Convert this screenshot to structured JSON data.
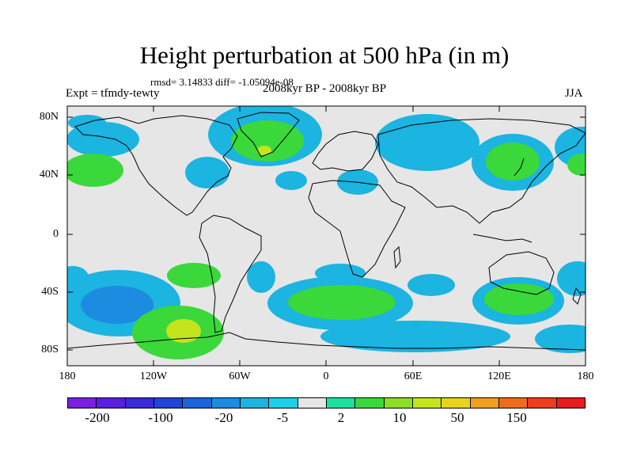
{
  "title": "Height perturbation at 500 hPa (in m)",
  "stats": "rmsd= 3.14833 diff= -1.05094e-08",
  "left_label": "Expt = tfmdy-tewty",
  "subtitle": "2008kyr BP - 2008kyr BP",
  "season": "JJA",
  "lat_ticks": [
    "80N",
    "40N",
    "0",
    "40S",
    "80S"
  ],
  "lon_ticks": [
    "180",
    "120W",
    "60W",
    "0",
    "60E",
    "120E",
    "180"
  ],
  "colorbar": {
    "colors": [
      "#7c1fe0",
      "#5a1ee0",
      "#3a2ad8",
      "#2044d8",
      "#1a64dc",
      "#1c8ce0",
      "#1cb4e0",
      "#1cd0e8",
      "#e6e6e6",
      "#1ce0a0",
      "#3ad83a",
      "#8ce024",
      "#c4e41c",
      "#e8d41c",
      "#f0a01c",
      "#f06c1c",
      "#f03c1c",
      "#e81c1c"
    ],
    "labels": [
      "-200",
      "-100",
      "-20",
      "-5",
      "2",
      "10",
      "50",
      "150"
    ]
  },
  "chart_data": {
    "type": "heatmap",
    "title": "Height perturbation at 500 hPa (in m)",
    "xlabel": "",
    "ylabel": "",
    "x_ticks": [
      "180",
      "120W",
      "60W",
      "0",
      "60E",
      "120E",
      "180"
    ],
    "y_ticks": [
      "80N",
      "40N",
      "0",
      "40S",
      "80S"
    ],
    "xlim": [
      -180,
      180
    ],
    "ylim": [
      -90,
      90
    ],
    "levels": [
      "-200",
      "-100",
      "-20",
      "-5",
      "2",
      "10",
      "50",
      "150"
    ],
    "regions": [
      {
        "lon": -30,
        "lat": 62,
        "value": 10
      },
      {
        "lon": -35,
        "lat": 60,
        "value": 50
      },
      {
        "lon": -172,
        "lat": 42,
        "value": 10
      },
      {
        "lon": -70,
        "lat": 40,
        "value": -5
      },
      {
        "lon": -145,
        "lat": 65,
        "value": -5
      },
      {
        "lon": 60,
        "lat": 58,
        "value": -5
      },
      {
        "lon": 20,
        "lat": 40,
        "value": -5
      },
      {
        "lon": 125,
        "lat": 55,
        "value": 10
      },
      {
        "lon": 168,
        "lat": 62,
        "value": -5
      },
      {
        "lon": -148,
        "lat": -45,
        "value": -20
      },
      {
        "lon": -100,
        "lat": -70,
        "value": 50
      },
      {
        "lon": -73,
        "lat": -25,
        "value": 10
      },
      {
        "lon": 10,
        "lat": -48,
        "value": 10
      },
      {
        "lon": 60,
        "lat": -37,
        "value": -5
      },
      {
        "lon": 140,
        "lat": -40,
        "value": 10
      },
      {
        "lon": 175,
        "lat": -20,
        "value": -5
      }
    ]
  }
}
